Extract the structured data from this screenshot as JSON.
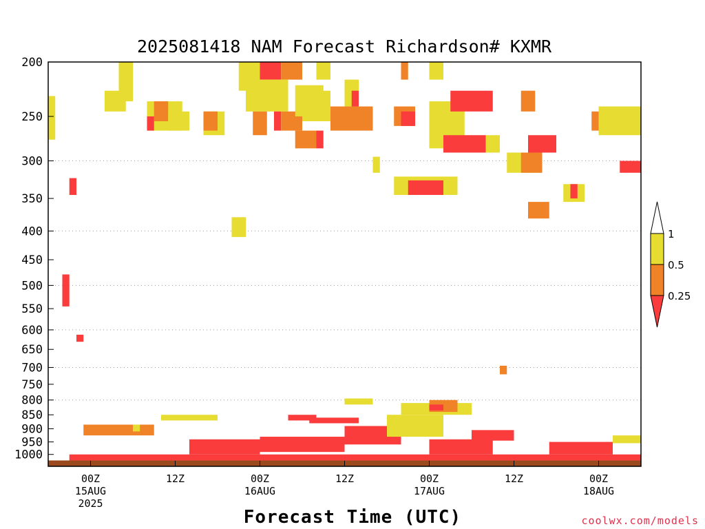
{
  "chart_data": {
    "type": "heatmap",
    "title": "2025081418 NAM Forecast Richardson# KXMR",
    "xlabel": "Forecast Time (UTC)",
    "ylabel": "",
    "credit": "coolwx.com/models",
    "yaxis": {
      "scale": "pressure",
      "ylim": [
        1050,
        200
      ],
      "ticks": [
        200,
        250,
        300,
        350,
        400,
        450,
        500,
        550,
        600,
        650,
        700,
        750,
        800,
        850,
        900,
        950,
        1000
      ],
      "gridlines": [
        300,
        400,
        500,
        600,
        700,
        800
      ]
    },
    "xaxis": {
      "start": "2025-08-14 18Z",
      "end": "2025-08-18 06Z",
      "tick_times": [
        "2025-08-15 00Z",
        "2025-08-15 12Z",
        "2025-08-16 00Z",
        "2025-08-16 12Z",
        "2025-08-17 00Z",
        "2025-08-17 12Z",
        "2025-08-18 00Z"
      ],
      "tick_labels": [
        [
          "00Z",
          "15AUG",
          "2025"
        ],
        [
          "12Z"
        ],
        [
          "00Z",
          "16AUG"
        ],
        [
          "12Z"
        ],
        [
          "00Z",
          "17AUG"
        ],
        [
          "12Z"
        ],
        [
          "00Z",
          "18AUG"
        ]
      ]
    },
    "colorbar": {
      "labels": [
        "1",
        "0.5",
        "0.25"
      ],
      "bins": [
        {
          "range": "0.5-1",
          "color": "#e6dc32"
        },
        {
          "range": "0.25-0.5",
          "color": "#f08228"
        },
        {
          "range": "<0.25",
          "color": "#fa3c3c"
        }
      ]
    },
    "colors": {
      "yellow": "#e6dc32",
      "orange": "#f08228",
      "red": "#fa3c3c",
      "ground": "#9b4a1e"
    },
    "cells": [
      [
        "2025-08-14 18Z",
        "2025-08-14 19Z",
        230,
        275,
        "yellow"
      ],
      [
        "2025-08-14 21Z",
        "2025-08-14 22Z",
        322,
        345,
        "red"
      ],
      [
        "2025-08-14 20Z",
        "2025-08-14 21Z",
        478,
        545,
        "red"
      ],
      [
        "2025-08-14 22Z",
        "2025-08-14 23Z",
        612,
        630,
        "red"
      ],
      [
        "2025-08-15 04Z",
        "2025-08-15 06Z",
        200,
        235,
        "yellow"
      ],
      [
        "2025-08-15 02Z",
        "2025-08-15 05Z",
        225,
        245,
        "yellow"
      ],
      [
        "2025-08-15 08Z",
        "2025-08-15 13Z",
        235,
        265,
        "yellow"
      ],
      [
        "2025-08-15 09Z",
        "2025-08-15 11Z",
        235,
        255,
        "orange"
      ],
      [
        "2025-08-15 08Z",
        "2025-08-15 09Z",
        250,
        265,
        "red"
      ],
      [
        "2025-08-15 11Z",
        "2025-08-15 14Z",
        245,
        265,
        "yellow"
      ],
      [
        "2025-08-15 16Z",
        "2025-08-15 19Z",
        245,
        270,
        "yellow"
      ],
      [
        "2025-08-15 16Z",
        "2025-08-15 18Z",
        245,
        265,
        "orange"
      ],
      [
        "2025-08-15 20Z",
        "2025-08-15 22Z",
        378,
        410,
        "yellow"
      ],
      [
        "2025-08-15 21Z",
        "2025-08-16 00Z",
        200,
        225,
        "yellow"
      ],
      [
        "2025-08-16 00Z",
        "2025-08-16 03Z",
        200,
        215,
        "red"
      ],
      [
        "2025-08-16 03Z",
        "2025-08-16 06Z",
        200,
        215,
        "orange"
      ],
      [
        "2025-08-15 22Z",
        "2025-08-16 04Z",
        215,
        245,
        "yellow"
      ],
      [
        "2025-08-15 23Z",
        "2025-08-16 01Z",
        245,
        270,
        "orange"
      ],
      [
        "2025-08-16 02Z",
        "2025-08-16 03Z",
        245,
        265,
        "red"
      ],
      [
        "2025-08-16 03Z",
        "2025-08-16 06Z",
        245,
        265,
        "orange"
      ],
      [
        "2025-08-16 05Z",
        "2025-08-16 09Z",
        220,
        250,
        "yellow"
      ],
      [
        "2025-08-16 05Z",
        "2025-08-16 08Z",
        265,
        285,
        "orange"
      ],
      [
        "2025-08-16 08Z",
        "2025-08-16 09Z",
        265,
        285,
        "red"
      ],
      [
        "2025-08-16 06Z",
        "2025-08-16 10Z",
        225,
        255,
        "yellow"
      ],
      [
        "2025-08-16 08Z",
        "2025-08-16 10Z",
        200,
        215,
        "yellow"
      ],
      [
        "2025-08-16 10Z",
        "2025-08-16 16Z",
        240,
        265,
        "orange"
      ],
      [
        "2025-08-16 12Z",
        "2025-08-16 14Z",
        215,
        240,
        "yellow"
      ],
      [
        "2025-08-16 13Z",
        "2025-08-16 14Z",
        225,
        240,
        "red"
      ],
      [
        "2025-08-16 16Z",
        "2025-08-16 17Z",
        295,
        315,
        "yellow"
      ],
      [
        "2025-08-16 20Z",
        "2025-08-16 21Z",
        200,
        215,
        "orange"
      ],
      [
        "2025-08-16 19Z",
        "2025-08-16 22Z",
        240,
        260,
        "orange"
      ],
      [
        "2025-08-16 20Z",
        "2025-08-16 22Z",
        245,
        260,
        "red"
      ],
      [
        "2025-08-16 19Z",
        "2025-08-17 04Z",
        320,
        345,
        "yellow"
      ],
      [
        "2025-08-16 21Z",
        "2025-08-17 02Z",
        325,
        345,
        "red"
      ],
      [
        "2025-08-17 00Z",
        "2025-08-17 02Z",
        200,
        215,
        "yellow"
      ],
      [
        "2025-08-17 00Z",
        "2025-08-17 05Z",
        235,
        285,
        "yellow"
      ],
      [
        "2025-08-17 03Z",
        "2025-08-17 09Z",
        225,
        245,
        "red"
      ],
      [
        "2025-08-17 02Z",
        "2025-08-17 08Z",
        270,
        290,
        "red"
      ],
      [
        "2025-08-17 08Z",
        "2025-08-17 10Z",
        270,
        290,
        "yellow"
      ],
      [
        "2025-08-17 11Z",
        "2025-08-17 15Z",
        290,
        315,
        "yellow"
      ],
      [
        "2025-08-17 13Z",
        "2025-08-17 15Z",
        225,
        245,
        "orange"
      ],
      [
        "2025-08-17 13Z",
        "2025-08-17 16Z",
        290,
        315,
        "orange"
      ],
      [
        "2025-08-17 14Z",
        "2025-08-17 18Z",
        270,
        290,
        "red"
      ],
      [
        "2025-08-17 14Z",
        "2025-08-17 17Z",
        355,
        380,
        "orange"
      ],
      [
        "2025-08-17 19Z",
        "2025-08-17 22Z",
        330,
        355,
        "yellow"
      ],
      [
        "2025-08-17 20Z",
        "2025-08-17 21Z",
        330,
        350,
        "red"
      ],
      [
        "2025-08-17 23Z",
        "2025-08-18 01Z",
        245,
        265,
        "orange"
      ],
      [
        "2025-08-18 00Z",
        "2025-08-18 06Z",
        240,
        270,
        "yellow"
      ],
      [
        "2025-08-18 03Z",
        "2025-08-18 06Z",
        300,
        315,
        "red"
      ],
      [
        "2025-08-14 21Z",
        "2025-08-18 06Z",
        1000,
        1025,
        "red"
      ],
      [
        "2025-08-14 23Z",
        "2025-08-15 09Z",
        885,
        925,
        "orange"
      ],
      [
        "2025-08-15 06Z",
        "2025-08-15 07Z",
        885,
        910,
        "yellow"
      ],
      [
        "2025-08-15 10Z",
        "2025-08-15 18Z",
        850,
        870,
        "yellow"
      ],
      [
        "2025-08-15 14Z",
        "2025-08-16 00Z",
        940,
        1000,
        "red"
      ],
      [
        "2025-08-16 00Z",
        "2025-08-16 12Z",
        930,
        990,
        "red"
      ],
      [
        "2025-08-16 04Z",
        "2025-08-16 08Z",
        850,
        870,
        "red"
      ],
      [
        "2025-08-16 07Z",
        "2025-08-16 14Z",
        860,
        880,
        "red"
      ],
      [
        "2025-08-16 12Z",
        "2025-08-16 20Z",
        890,
        960,
        "red"
      ],
      [
        "2025-08-16 18Z",
        "2025-08-17 02Z",
        850,
        930,
        "yellow"
      ],
      [
        "2025-08-16 20Z",
        "2025-08-17 06Z",
        810,
        850,
        "yellow"
      ],
      [
        "2025-08-17 00Z",
        "2025-08-17 04Z",
        800,
        840,
        "orange"
      ],
      [
        "2025-08-17 00Z",
        "2025-08-17 02Z",
        815,
        835,
        "red"
      ],
      [
        "2025-08-16 12Z",
        "2025-08-16 16Z",
        795,
        815,
        "yellow"
      ],
      [
        "2025-08-17 00Z",
        "2025-08-17 09Z",
        940,
        1000,
        "red"
      ],
      [
        "2025-08-17 06Z",
        "2025-08-17 12Z",
        905,
        945,
        "red"
      ],
      [
        "2025-08-17 10Z",
        "2025-08-17 11Z",
        695,
        720,
        "orange"
      ],
      [
        "2025-08-17 17Z",
        "2025-08-18 02Z",
        950,
        1000,
        "red"
      ],
      [
        "2025-08-18 02Z",
        "2025-08-18 06Z",
        925,
        955,
        "yellow"
      ]
    ]
  }
}
